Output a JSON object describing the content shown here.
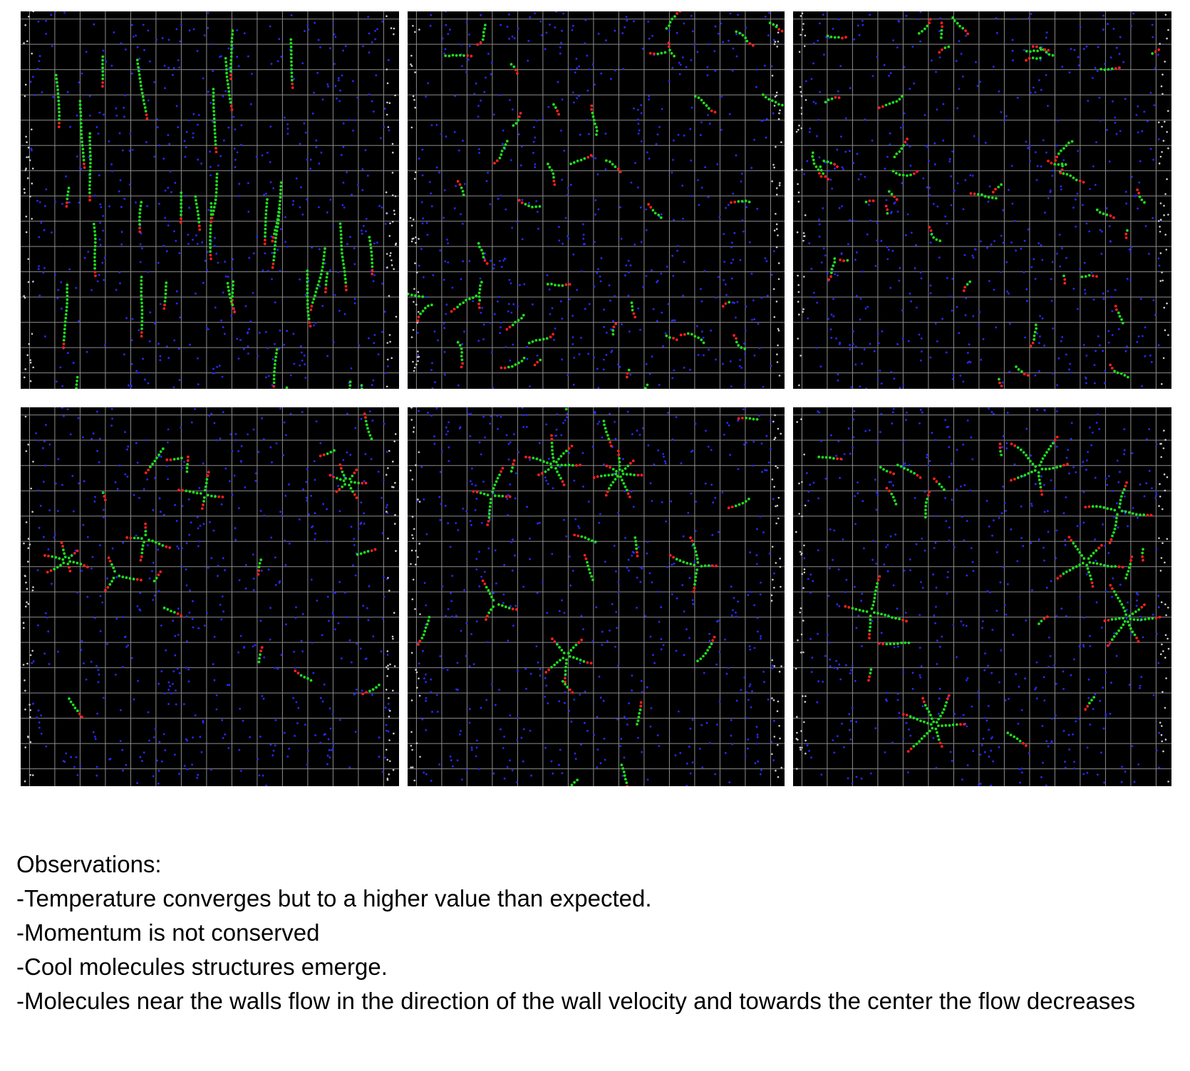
{
  "figure": {
    "panels": [
      {
        "label": "",
        "structure": "vertical-strands",
        "seed": 11,
        "colors": {
          "background": "#000000",
          "grid": "#8c8c8c",
          "free": "#2a2aff",
          "bonded": "#1fdc1f",
          "endpoint": "#ff2020",
          "wall": "#cfcfcf"
        }
      },
      {
        "label": "",
        "structure": "short-fragments",
        "seed": 23
      },
      {
        "label": "",
        "structure": "short-fragments",
        "seed": 37
      },
      {
        "label": "",
        "structure": "small-stars",
        "seed": 51
      },
      {
        "label": "",
        "structure": "stars",
        "seed": 67
      },
      {
        "label": "",
        "structure": "large-stars",
        "seed": 83
      }
    ]
  },
  "observations": {
    "heading": "Observations:",
    "items": [
      "-Temperature converges but to a higher value than expected.",
      "-Momentum is not conserved",
      "-Cool molecules structures emerge.",
      "-Molecules near the walls flow in the direction of the wall velocity and towards the center the flow decreases"
    ]
  }
}
